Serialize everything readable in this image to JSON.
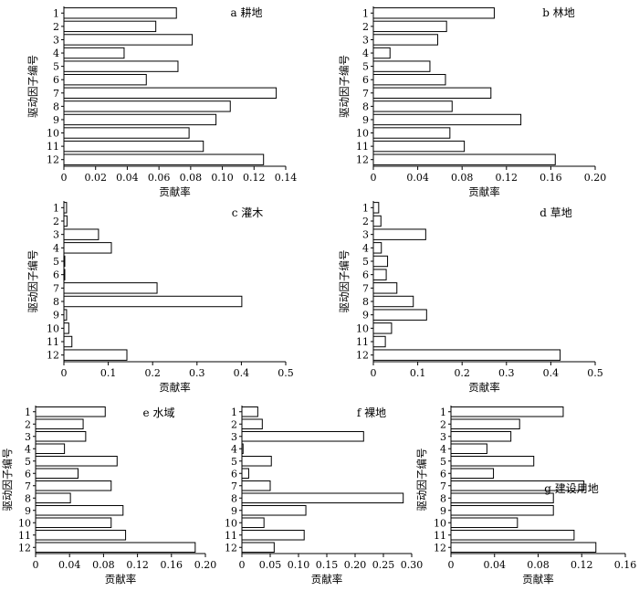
{
  "colors": {
    "bar_fill": "#ffffff",
    "bar_stroke": "#000000",
    "text": "#000000"
  },
  "chart_data": [
    {
      "type": "bar",
      "orientation": "horizontal",
      "title": "a 耕地",
      "categories": [
        "1",
        "2",
        "3",
        "4",
        "5",
        "6",
        "7",
        "8",
        "9",
        "10",
        "11",
        "12"
      ],
      "values": [
        0.071,
        0.058,
        0.081,
        0.038,
        0.072,
        0.052,
        0.134,
        0.105,
        0.096,
        0.079,
        0.088,
        0.126
      ],
      "xlim": [
        0,
        0.14
      ],
      "xticks": [
        "0",
        "0.02",
        "0.04",
        "0.06",
        "0.08",
        "0.10",
        "0.12",
        "0.14"
      ],
      "xlabel": "贡献率",
      "ylabel": "驱动因子编号"
    },
    {
      "type": "bar",
      "orientation": "horizontal",
      "title": "b 林地",
      "categories": [
        "1",
        "2",
        "3",
        "4",
        "5",
        "6",
        "7",
        "8",
        "9",
        "10",
        "11",
        "12"
      ],
      "values": [
        0.109,
        0.066,
        0.058,
        0.015,
        0.051,
        0.065,
        0.106,
        0.071,
        0.133,
        0.069,
        0.082,
        0.164
      ],
      "xlim": [
        0,
        0.2
      ],
      "xticks": [
        "0",
        "0.04",
        "0.08",
        "0.12",
        "0.16",
        "0.20"
      ],
      "xlabel": "贡献率",
      "ylabel": "驱动因子编号"
    },
    {
      "type": "bar",
      "orientation": "horizontal",
      "title": "c 灌木",
      "categories": [
        "1",
        "2",
        "3",
        "4",
        "5",
        "6",
        "7",
        "8",
        "9",
        "10",
        "11",
        "12"
      ],
      "values": [
        0.006,
        0.007,
        0.078,
        0.107,
        0.002,
        0.002,
        0.21,
        0.401,
        0.006,
        0.011,
        0.018,
        0.142
      ],
      "xlim": [
        0,
        0.5
      ],
      "xticks": [
        "0",
        "0.1",
        "0.2",
        "0.3",
        "0.4",
        "0.5"
      ],
      "xlabel": "贡献率",
      "ylabel": "驱动因子编号"
    },
    {
      "type": "bar",
      "orientation": "horizontal",
      "title": "d 草地",
      "categories": [
        "1",
        "2",
        "3",
        "4",
        "5",
        "6",
        "7",
        "8",
        "9",
        "10",
        "11",
        "12"
      ],
      "values": [
        0.012,
        0.017,
        0.118,
        0.018,
        0.032,
        0.029,
        0.053,
        0.09,
        0.12,
        0.041,
        0.027,
        0.421
      ],
      "xlim": [
        0,
        0.5
      ],
      "xticks": [
        "0",
        "0.1",
        "0.2",
        "0.3",
        "0.4",
        "0.5"
      ],
      "xlabel": "贡献率",
      "ylabel": "驱动因子编号"
    },
    {
      "type": "bar",
      "orientation": "horizontal",
      "title": "e 水域",
      "categories": [
        "1",
        "2",
        "3",
        "4",
        "5",
        "6",
        "7",
        "8",
        "9",
        "10",
        "11",
        "12"
      ],
      "values": [
        0.082,
        0.056,
        0.059,
        0.034,
        0.096,
        0.05,
        0.089,
        0.041,
        0.103,
        0.089,
        0.106,
        0.188
      ],
      "xlim": [
        0,
        0.2
      ],
      "xticks": [
        "0",
        "0.04",
        "0.08",
        "0.12",
        "0.16",
        "0.20"
      ],
      "xlabel": "贡献率",
      "ylabel": "驱动因子编号"
    },
    {
      "type": "bar",
      "orientation": "horizontal",
      "title": "f 裸地",
      "categories": [
        "1",
        "2",
        "3",
        "4",
        "5",
        "6",
        "7",
        "8",
        "9",
        "10",
        "11",
        "12"
      ],
      "values": [
        0.028,
        0.036,
        0.215,
        0.002,
        0.052,
        0.012,
        0.05,
        0.285,
        0.113,
        0.039,
        0.11,
        0.057
      ],
      "xlim": [
        0,
        0.3
      ],
      "xticks": [
        "0",
        "0.05",
        "0.10",
        "0.15",
        "0.20",
        "0.25",
        "0.30"
      ],
      "xlabel": "贡献率",
      "ylabel": ""
    },
    {
      "type": "bar",
      "orientation": "horizontal",
      "title": "g 建设用地",
      "categories": [
        "1",
        "2",
        "3",
        "4",
        "5",
        "6",
        "7",
        "8",
        "9",
        "10",
        "11",
        "12"
      ],
      "values": [
        0.103,
        0.063,
        0.055,
        0.033,
        0.076,
        0.039,
        0.122,
        0.094,
        0.094,
        0.061,
        0.113,
        0.133
      ],
      "xlim": [
        0,
        0.16
      ],
      "xticks": [
        "0",
        "0.04",
        "0.08",
        "0.12",
        "0.16"
      ],
      "xlabel": "贡献率",
      "ylabel": "驱动因子编号"
    }
  ]
}
